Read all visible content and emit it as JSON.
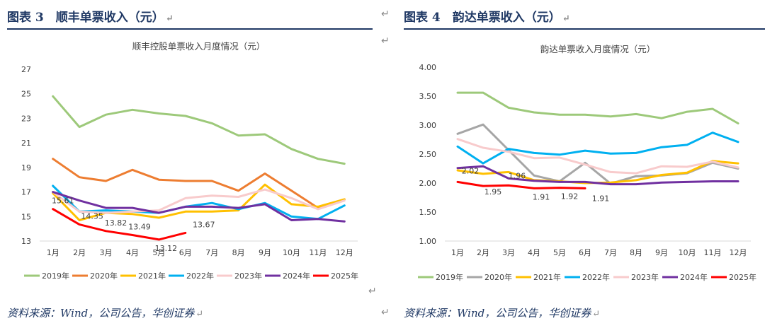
{
  "panels": [
    {
      "figure_title": "图表 3　顺丰单票收入（元）",
      "source": "资料来源：Wind，公司公告，华创证券",
      "chart_data": {
        "type": "line",
        "title": "顺丰控股单票收入月度情况（元）",
        "categories": [
          "1月",
          "2月",
          "3月",
          "4月",
          "5月",
          "6月",
          "7月",
          "8月",
          "9月",
          "10月",
          "11月",
          "12月"
        ],
        "ylim": [
          13,
          27
        ],
        "yticks": [
          "27",
          "25",
          "23",
          "21",
          "19",
          "17",
          "15",
          "13"
        ],
        "grid": false,
        "legend_position": "bottom",
        "series": [
          {
            "name": "2019年",
            "color": "#9dc97a",
            "values": [
              24.8,
              22.3,
              23.3,
              23.7,
              23.4,
              23.2,
              22.6,
              21.6,
              21.7,
              20.5,
              19.7,
              19.3
            ]
          },
          {
            "name": "2020年",
            "color": "#ed7d31",
            "values": [
              19.7,
              18.2,
              17.9,
              18.8,
              18.0,
              17.9,
              17.9,
              17.1,
              18.5,
              17.1,
              15.7,
              16.4
            ]
          },
          {
            "name": "2021年",
            "color": "#ffc000",
            "values": [
              16.9,
              14.7,
              15.3,
              15.2,
              14.9,
              15.4,
              15.4,
              15.5,
              17.6,
              16.0,
              15.8,
              16.4
            ]
          },
          {
            "name": "2022年",
            "color": "#00b0f0",
            "values": [
              17.5,
              15.4,
              15.5,
              15.4,
              15.3,
              15.8,
              16.1,
              15.6,
              16.1,
              15.0,
              14.8,
              15.9
            ]
          },
          {
            "name": "2023年",
            "color": "#f8cbcc",
            "values": [
              17.0,
              15.4,
              15.3,
              15.4,
              15.5,
              16.5,
              16.7,
              16.6,
              17.2,
              16.5,
              15.6,
              16.3
            ]
          },
          {
            "name": "2024年",
            "color": "#7030a0",
            "values": [
              17.0,
              16.3,
              15.7,
              15.7,
              15.3,
              15.8,
              15.8,
              15.7,
              16.0,
              14.7,
              14.8,
              14.6
            ]
          },
          {
            "name": "2025年",
            "color": "#ff0000",
            "values": [
              15.61,
              14.35,
              13.82,
              13.49,
              13.12,
              13.67,
              null,
              null,
              null,
              null,
              null,
              null
            ],
            "data_labels": [
              "15.61",
              "14.35",
              "13.82",
              "13.49",
              "13.12",
              "13.67"
            ]
          }
        ]
      }
    },
    {
      "figure_title": "图表 4　韵达单票收入（元）",
      "source": "资料来源：Wind，公司公告，华创证券",
      "chart_data": {
        "type": "line",
        "title": "韵达单票收入月度情况（元）",
        "categories": [
          "1月",
          "2月",
          "3月",
          "4月",
          "5月",
          "6月",
          "7月",
          "8月",
          "9月",
          "10月",
          "11月",
          "12月"
        ],
        "ylim": [
          1.0,
          4.0
        ],
        "yticks": [
          "4.00",
          "3.50",
          "3.00",
          "2.50",
          "2.00",
          "1.50",
          "1.00"
        ],
        "grid": false,
        "legend_position": "bottom",
        "series": [
          {
            "name": "2019年",
            "color": "#9dc97a",
            "values": [
              3.56,
              3.56,
              3.3,
              3.22,
              3.18,
              3.18,
              3.15,
              3.19,
              3.12,
              3.23,
              3.28,
              3.03
            ]
          },
          {
            "name": "2020年",
            "color": "#a6a6a6",
            "values": [
              2.85,
              3.01,
              2.57,
              2.13,
              2.03,
              2.35,
              1.99,
              2.12,
              2.13,
              2.17,
              2.35,
              2.25
            ]
          },
          {
            "name": "2021年",
            "color": "#ffc000",
            "values": [
              2.22,
              2.16,
              2.19,
              2.05,
              2.03,
              2.0,
              2.01,
              2.05,
              2.14,
              2.18,
              2.38,
              2.34
            ]
          },
          {
            "name": "2022年",
            "color": "#00b0f0",
            "values": [
              2.63,
              2.34,
              2.59,
              2.52,
              2.49,
              2.56,
              2.51,
              2.52,
              2.62,
              2.66,
              2.87,
              2.71
            ]
          },
          {
            "name": "2023年",
            "color": "#f8cbcc",
            "values": [
              2.76,
              2.61,
              2.54,
              2.43,
              2.44,
              2.32,
              2.19,
              2.17,
              2.29,
              2.28,
              2.37,
              2.27
            ]
          },
          {
            "name": "2024年",
            "color": "#7030a0",
            "values": [
              2.26,
              2.29,
              2.08,
              2.04,
              2.02,
              2.02,
              1.98,
              1.98,
              2.01,
              2.02,
              2.03,
              2.03
            ]
          },
          {
            "name": "2025年",
            "color": "#ff0000",
            "values": [
              2.02,
              1.95,
              1.96,
              1.91,
              1.92,
              1.91,
              null,
              null,
              null,
              null,
              null,
              null
            ],
            "data_labels": [
              "2.02",
              "1.95",
              "1.96",
              "1.91",
              "1.92",
              "1.91"
            ]
          }
        ]
      }
    }
  ]
}
